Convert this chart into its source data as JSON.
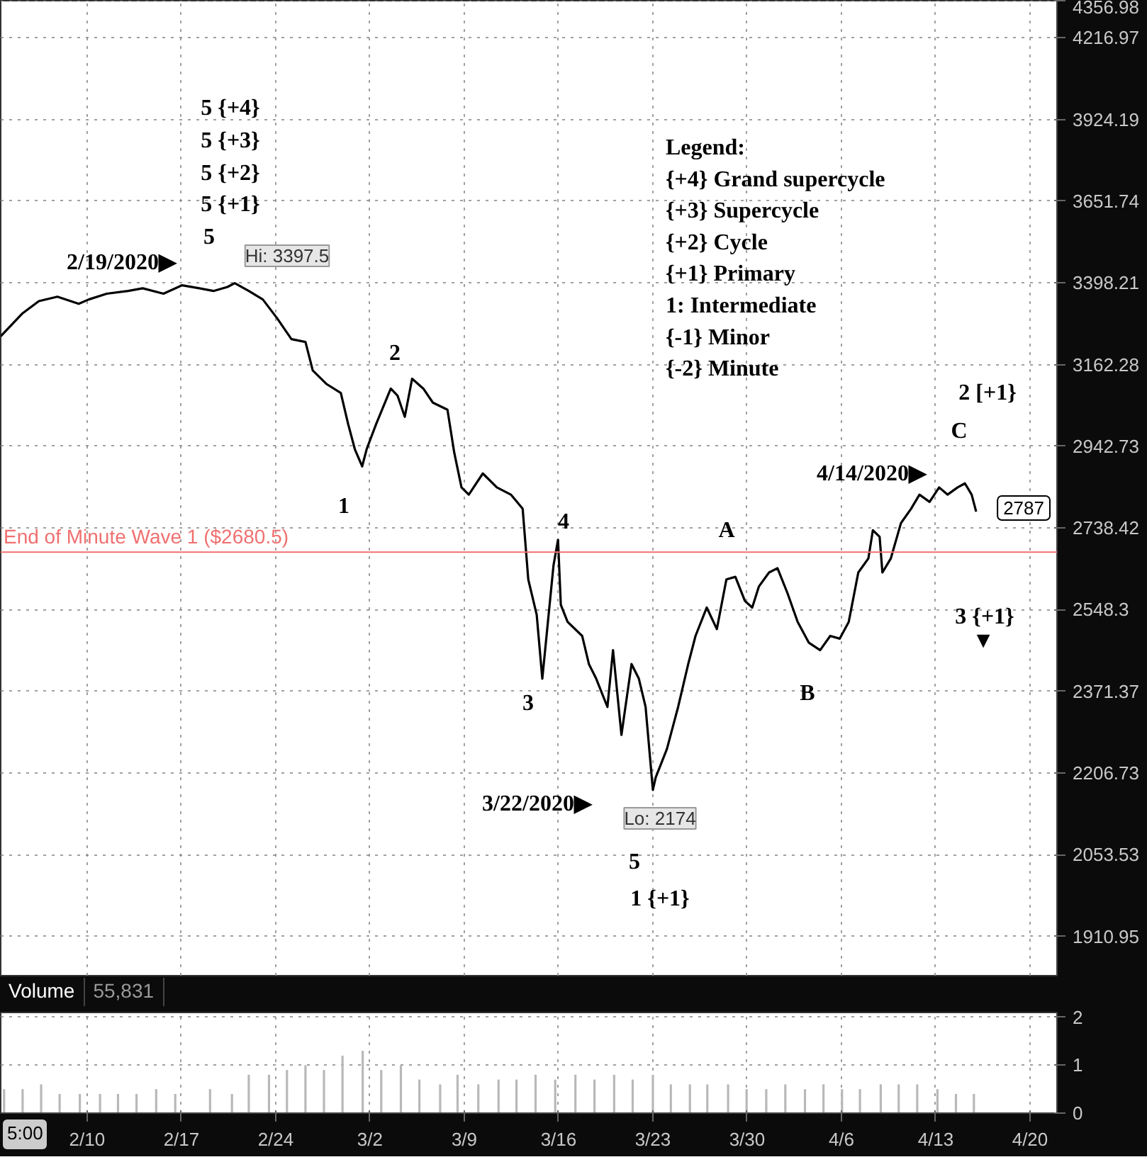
{
  "chart_data": [
    {
      "type": "line",
      "log": true,
      "grid": true,
      "tick_labels": "y",
      "x": [
        "2020-02-03T14:00",
        "2020-02-05T04:00",
        "2020-02-06T10:00",
        "2020-02-07T19:00",
        "2020-02-09T09:00",
        "2020-02-10T03:00",
        "2020-02-11T11:00",
        "2020-02-13T01:00",
        "2020-02-14T03:00",
        "2020-02-15T16:00",
        "2020-02-17T01:00",
        "2020-02-18T08:00",
        "2020-02-19T09:00",
        "2020-02-20T10:00",
        "2020-02-20T23:00",
        "2020-02-22T00:00",
        "2020-02-23T01:00",
        "2020-02-24T02:00",
        "2020-02-25T04:00",
        "2020-02-26T05:00",
        "2020-02-26T18:00",
        "2020-02-27T19:00",
        "2020-02-28T20:00",
        "2020-02-29T09:00",
        "2020-02-29T21:00",
        "2020-03-01T10:00",
        "2020-03-01T18:00",
        "2020-03-02T11:00",
        "2020-03-03T13:00",
        "2020-03-04T01:00",
        "2020-03-04T14:00",
        "2020-03-05T03:00",
        "2020-03-05T23:00",
        "2020-03-06T16:00",
        "2020-03-07T18:00",
        "2020-03-08T06:00",
        "2020-03-08T19:00",
        "2020-03-09T08:00",
        "2020-03-10T09:00",
        "2020-03-11T10:00",
        "2020-03-12T11:00",
        "2020-03-13T08:00",
        "2020-03-13T18:00",
        "2020-03-14T09:00",
        "2020-03-14T19:00",
        "2020-03-15T05:00",
        "2020-03-15T15:00",
        "2020-03-15T23:00",
        "2020-03-16T04:00",
        "2020-03-16T16:00",
        "2020-03-17T18:00",
        "2020-03-18T06:00",
        "2020-03-18T19:00",
        "2020-03-19T15:00",
        "2020-03-20T01:00",
        "2020-03-20T16:00",
        "2020-03-21T10:00",
        "2020-03-21T23:00",
        "2020-03-22T11:00",
        "2020-03-23T00:00",
        "2020-03-23T05:00",
        "2020-03-24T01:00",
        "2020-03-24T21:00",
        "2020-03-25T15:00",
        "2020-03-26T04:00",
        "2020-03-27T00:00",
        "2020-03-27T18:00",
        "2020-03-28T11:00",
        "2020-03-29T03:00",
        "2020-03-29T20:00",
        "2020-03-30T09:00",
        "2020-03-30T21:00",
        "2020-03-31T15:00",
        "2020-04-01T06:00",
        "2020-04-02T00:00",
        "2020-04-02T18:00",
        "2020-04-03T14:00",
        "2020-04-04T10:00",
        "2020-04-05T04:00",
        "2020-04-05T21:00",
        "2020-04-06T13:00",
        "2020-04-07T06:00",
        "2020-04-08T00:00",
        "2020-04-08T08:00",
        "2020-04-08T20:00",
        "2020-04-09T01:00",
        "2020-04-09T16:00",
        "2020-04-10T10:00",
        "2020-04-11T04:00",
        "2020-04-11T19:00",
        "2020-04-12T13:00",
        "2020-04-13T06:00",
        "2020-04-13T21:00",
        "2020-04-14T15:00",
        "2020-04-15T04:00",
        "2020-04-15T16:00",
        "2020-04-16T00:00"
      ],
      "xticks": [
        {
          "value": "2020-02-10",
          "label": null
        },
        {
          "value": "2020-02-17",
          "label": null
        },
        {
          "value": "2020-02-24",
          "label": null
        },
        {
          "value": "2020-03-02",
          "label": null
        },
        {
          "value": "2020-03-09",
          "label": null
        },
        {
          "value": "2020-03-16",
          "label": null
        },
        {
          "value": "2020-03-23",
          "label": null
        },
        {
          "value": "2020-03-30",
          "label": null
        },
        {
          "value": "2020-04-06",
          "label": null
        },
        {
          "value": "2020-04-13",
          "label": null
        },
        {
          "value": "2020-04-20",
          "label": null
        }
      ],
      "series": [
        {
          "color": "#000000",
          "values": [
            3242,
            3307,
            3344,
            3357,
            3336,
            3349,
            3366,
            3374,
            3382,
            3366,
            3391,
            3382,
            3374,
            3386,
            3397.5,
            3374,
            3349,
            3295,
            3234,
            3226,
            3146,
            3108,
            3084,
            3001,
            2935,
            2891,
            2935,
            3001,
            3096,
            3077,
            3020,
            3123,
            3096,
            3058,
            3039,
            2927,
            2838,
            2820,
            2873,
            2838,
            2820,
            2785,
            2617,
            2537,
            2398,
            2521,
            2650,
            2710,
            2559,
            2521,
            2490,
            2429,
            2398,
            2339,
            2459,
            2282,
            2429,
            2398,
            2339,
            2174,
            2198,
            2254,
            2339,
            2429,
            2490,
            2553,
            2505,
            2617,
            2623,
            2568,
            2553,
            2601,
            2633,
            2643,
            2585,
            2521,
            2475,
            2459,
            2490,
            2484,
            2521,
            2633,
            2666,
            2733,
            2717,
            2633,
            2666,
            2750,
            2785,
            2820,
            2802,
            2838,
            2820,
            2838,
            2848,
            2820,
            2778
          ]
        }
      ],
      "xlim": [
        "2020-02-03T14:00",
        "2020-04-22T00:00"
      ],
      "ylim": [
        1846,
        4357
      ],
      "yticks": [
        1910.95,
        2053.53,
        2206.73,
        2371.37,
        2548.3,
        2738.42,
        2942.73,
        3162.28,
        3398.21,
        3651.74,
        3924.19,
        4216.97,
        4356.98
      ],
      "ref_lines": [
        {
          "axis": "y",
          "value": 2680.5,
          "label": "End of Minute Wave  1 ($2680.5)",
          "color": "#f07070"
        }
      ],
      "annotations": [
        "Legend:",
        "{+4}  Grand supercycle",
        "{+3} Supercycle",
        "{+2} Cycle",
        "{+1} Primary",
        "1: Intermediate",
        "{-1} Minor",
        "{-2} Minute",
        "5 {+4}",
        "5 {+3}",
        "5 {+2}",
        "5 {+1}",
        "5",
        "2/19/2020▶",
        "Hi: 3397.5",
        "1",
        "2",
        "3",
        "4",
        "3/22/2020▶",
        "Lo: 2174",
        "5",
        "1 {+1}",
        "A",
        "B",
        "4/14/2020▶",
        "C",
        "2 [+1}",
        "3 {+1}",
        "▼",
        "2787"
      ]
    },
    {
      "type": "bar",
      "title": "Volume",
      "grid": true,
      "color": "#b8b8b8",
      "x": [
        "2020-02-03T20:00",
        "2020-02-05T05:00",
        "2020-02-06T14:00",
        "2020-02-07T23:00",
        "2020-02-09T11:00",
        "2020-02-10T23:00",
        "2020-02-12T07:00",
        "2020-02-13T16:00",
        "2020-02-15T03:00",
        "2020-02-16T13:00",
        "2020-02-19T03:00",
        "2020-02-20T18:00",
        "2020-02-22T00:00",
        "2020-02-23T12:00",
        "2020-02-24T20:00",
        "2020-02-26T05:00",
        "2020-02-27T14:00",
        "2020-02-28T23:00",
        "2020-03-01T11:00",
        "2020-03-02T20:00",
        "2020-03-04T07:00",
        "2020-03-05T16:00",
        "2020-03-07T05:00",
        "2020-03-08T12:00",
        "2020-03-10T01:00",
        "2020-03-11T13:00",
        "2020-03-12T21:00",
        "2020-03-14T07:00",
        "2020-03-15T18:00",
        "2020-03-17T06:00",
        "2020-03-18T16:00",
        "2020-03-20T03:00",
        "2020-03-21T12:00",
        "2020-03-23T00:00",
        "2020-03-24T08:00",
        "2020-03-25T18:00",
        "2020-03-27T01:00",
        "2020-03-28T14:00",
        "2020-03-29T23:00",
        "2020-03-31T10:00",
        "2020-04-01T20:00",
        "2020-04-03T07:00",
        "2020-04-04T16:00",
        "2020-04-06T01:00",
        "2020-04-07T09:00",
        "2020-04-08T22:00",
        "2020-04-10T06:00",
        "2020-04-11T15:00",
        "2020-04-13T03:00",
        "2020-04-14T12:00",
        "2020-04-15T20:00"
      ],
      "values": [
        0.5,
        0.5,
        0.6,
        0.4,
        0.4,
        0.4,
        0.4,
        0.4,
        0.5,
        0.4,
        0.5,
        0.4,
        0.8,
        0.8,
        0.9,
        1.0,
        0.9,
        1.2,
        1.3,
        0.9,
        1.0,
        0.7,
        0.6,
        0.8,
        0.6,
        0.7,
        0.7,
        0.8,
        0.7,
        0.8,
        0.7,
        0.8,
        0.7,
        0.8,
        0.6,
        0.6,
        0.6,
        0.6,
        0.5,
        0.5,
        0.6,
        0.5,
        0.6,
        0.5,
        0.5,
        0.6,
        0.6,
        0.6,
        0.5,
        0.4,
        0.4
      ],
      "xlim": [
        "2020-02-03T14:00",
        "2020-04-22T00:00"
      ],
      "xticks": [
        {
          "value": "2020-02-10",
          "label": "2/10"
        },
        {
          "value": "2020-02-17",
          "label": "2/17"
        },
        {
          "value": "2020-02-24",
          "label": "2/24"
        },
        {
          "value": "2020-03-02",
          "label": "3/2"
        },
        {
          "value": "2020-03-09",
          "label": "3/9"
        },
        {
          "value": "2020-03-16",
          "label": "3/16"
        },
        {
          "value": "2020-03-23",
          "label": "3/23"
        },
        {
          "value": "2020-03-30",
          "label": "3/30"
        },
        {
          "value": "2020-04-06",
          "label": "4/6"
        },
        {
          "value": "2020-04-13",
          "label": "4/13"
        },
        {
          "value": "2020-04-20",
          "label": "4/20"
        }
      ],
      "ylim": [
        0,
        2.1
      ],
      "yticks": [
        0,
        1,
        2
      ],
      "annotations": [
        "55,831",
        "5:00"
      ]
    }
  ]
}
